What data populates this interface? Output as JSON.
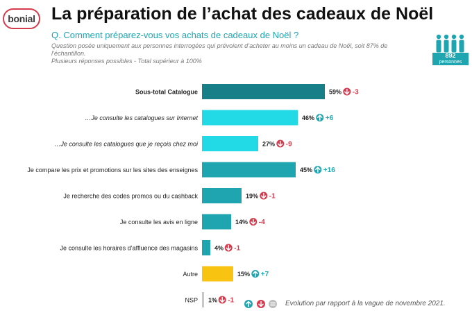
{
  "brand": {
    "logo_text": "bonial",
    "logo_color": "#d63a4d"
  },
  "header": {
    "title": "La préparation de l’achat des cadeaux de Noël",
    "question": "Q. Comment préparez-vous vos achats de cadeaux de Noël ?",
    "note_line1": "Question posée uniquement aux personnes interrogées qui prévoient d’acheter au moins un cadeau de Noël, soit 87% de l’échantillon.",
    "note_line2": "Plusieurs réponses possibles - Total supérieur à 100%"
  },
  "sample": {
    "count": "892",
    "label": "personnes",
    "icon": "people-icon"
  },
  "colors": {
    "total": "#177f87",
    "catalog": "#22d9e6",
    "main": "#1fa5b0",
    "other": "#f9c311",
    "nsp": "#c8c8c8",
    "up": "#1fa5b0",
    "down": "#d63a4d",
    "neutral": "#bdbdbd"
  },
  "chart_data": {
    "type": "bar",
    "orientation": "horizontal",
    "unit": "%",
    "xlim": [
      0,
      100
    ],
    "categories": [
      "Sous-total Catalogue",
      "…Je consulte les catalogues sur Internet",
      "…Je consulte les catalogues que je reçois chez moi",
      "Je compare les prix et promotions sur les sites des enseignes",
      "Je recherche des codes promos ou du cashback",
      "Je consulte les avis en ligne",
      "Je consulte les horaires d’affluence des magasins",
      "Autre",
      "NSP"
    ],
    "values": [
      59,
      46,
      27,
      45,
      19,
      14,
      4,
      15,
      1
    ],
    "value_labels": [
      "59%",
      "46%",
      "27%",
      "45%",
      "19%",
      "14%",
      "4%",
      "15%",
      "1%"
    ],
    "changes": [
      "-3",
      "+6",
      "-9",
      "+16",
      "-1",
      "-4",
      "-1",
      "+7",
      "-1"
    ],
    "change_direction": [
      "down",
      "up",
      "down",
      "up",
      "down",
      "down",
      "down",
      "up",
      "down"
    ],
    "bar_color_keys": [
      "total",
      "catalog",
      "catalog",
      "main",
      "main",
      "main",
      "main",
      "other",
      "nsp"
    ],
    "label_style": [
      "bold",
      "italic",
      "italic",
      "normal",
      "normal",
      "normal",
      "normal",
      "normal",
      "normal"
    ],
    "legend_note": "Evolution par rapport à la vague de novembre 2021."
  }
}
